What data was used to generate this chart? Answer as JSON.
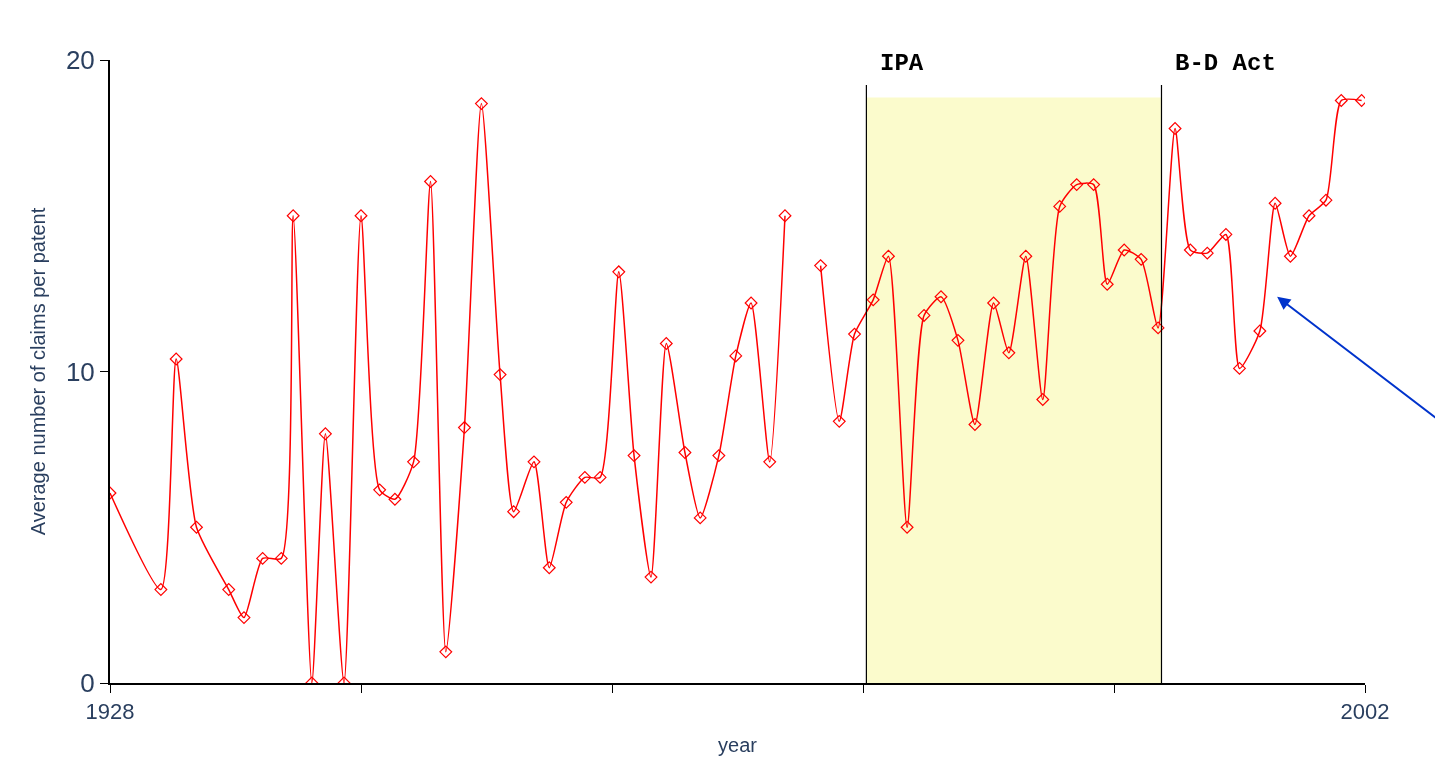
{
  "chart_data": {
    "type": "line",
    "xlabel": "year",
    "ylabel": "Average number of claims per patent",
    "x": [
      1928,
      1931.0,
      1931.9,
      1933.1,
      1935.0,
      1935.9,
      1937.0,
      1938.1,
      1938.8,
      1939.9,
      1940.7,
      1941.8,
      1942.8,
      1943.9,
      1944.8,
      1945.9,
      1946.9,
      1947.8,
      1948.9,
      1949.9,
      1951.0,
      1951.8,
      1953.0,
      1953.9,
      1954.9,
      1956.0,
      1956.9,
      1958.0,
      1958.9,
      1959.9,
      1960.8,
      1961.9,
      1962.8,
      1963.9,
      1964.9,
      1965.8,
      1966.9,
      1967.8,
      1968.8,
      1969.9,
      1971.0,
      1971.9,
      1973.0,
      1973.9,
      1975.0,
      1976.0,
      1977.0,
      1978.0,
      1979.0,
      1980.1,
      1981.0,
      1982.0,
      1983.0,
      1984.0,
      1985.0,
      1986.0,
      1986.8,
      1987.8,
      1988.8,
      1989.8,
      1990.8,
      1991.7,
      1992.7,
      1993.8,
      1994.6,
      1995.8,
      1996.7,
      1997.6,
      1998.7,
      1999.7,
      2000.6,
      2001.8
    ],
    "series": [
      {
        "color": "#ff0000",
        "values": [
          6.1,
          3.0,
          10.4,
          5.0,
          3.0,
          2.1,
          4.0,
          4.0,
          15.0,
          0,
          8.0,
          0,
          15.0,
          6.2,
          5.9,
          7.1,
          16.1,
          1.0,
          8.2,
          18.6,
          9.9,
          5.5,
          7.1,
          3.7,
          5.8,
          6.6,
          6.6,
          13.2,
          7.3,
          3.4,
          10.9,
          7.4,
          5.3,
          7.3,
          10.5,
          12.2,
          7.1,
          15.0,
          null,
          13.4,
          8.4,
          11.2,
          12.3,
          13.7,
          5.0,
          11.8,
          12.4,
          11.0,
          8.3,
          12.2,
          10.6,
          13.7,
          9.1,
          15.3,
          16.0,
          16.0,
          12.8,
          13.9,
          13.6,
          11.4,
          17.8,
          13.9,
          13.8,
          14.4,
          10.1,
          11.3,
          15.4,
          13.7,
          15.0,
          15.5,
          18.7,
          18.7
        ]
      }
    ],
    "xlim": [
      1928,
      2002
    ],
    "xticks": [
      1928,
      {
        "value": 1942.8,
        "label": null
      },
      {
        "value": 1957.6,
        "label": null
      },
      {
        "value": 1972.4,
        "label": null
      },
      {
        "value": 1987.2,
        "label": null
      },
      2002
    ],
    "ylim": [
      0,
      20
    ],
    "yticks": [
      0,
      10,
      20
    ],
    "ref_lines": [
      {
        "axis": "x",
        "value": 1972.6,
        "label": "IPA",
        "color": "#000000"
      },
      {
        "axis": "x",
        "value": 1990.0,
        "label": "B-D Act",
        "color": "#000000"
      }
    ],
    "bands": [
      {
        "axis": "x",
        "from": 1972.6,
        "to": 1990.0,
        "color": "#fbfbcc"
      }
    ],
    "marker": "diamond",
    "line_style": "solid",
    "grid": false,
    "legend": false
  }
}
